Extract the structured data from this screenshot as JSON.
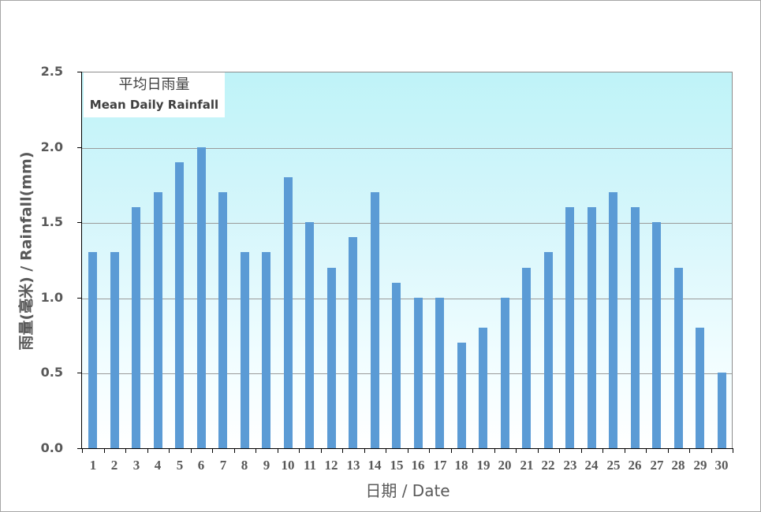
{
  "chart_data": {
    "type": "bar",
    "title": "平均日雨量 Mean Daily Rainfall",
    "legend": {
      "zh": "平均日雨量",
      "en": "Mean Daily Rainfall"
    },
    "xlabel": "日期 / Date",
    "ylabel": "雨量(毫米) / Rainfall(mm)",
    "ylim": [
      0,
      2.5
    ],
    "yticks": [
      "0.0",
      "0.5",
      "1.0",
      "1.5",
      "2.0",
      "2.5"
    ],
    "grid": true,
    "categories": [
      "1",
      "2",
      "3",
      "4",
      "5",
      "6",
      "7",
      "8",
      "9",
      "10",
      "11",
      "12",
      "13",
      "14",
      "15",
      "16",
      "17",
      "18",
      "19",
      "20",
      "21",
      "22",
      "23",
      "24",
      "25",
      "26",
      "27",
      "28",
      "29",
      "30"
    ],
    "values": [
      1.3,
      1.3,
      1.6,
      1.7,
      1.9,
      2.0,
      1.7,
      1.3,
      1.3,
      1.8,
      1.5,
      1.2,
      1.4,
      1.7,
      1.1,
      1.0,
      1.0,
      0.7,
      0.8,
      1.0,
      1.2,
      1.3,
      1.6,
      1.6,
      1.7,
      1.6,
      1.5,
      1.2,
      0.8,
      0.5
    ],
    "bar_color": "#5b9bd5",
    "background_gradient": [
      "#bff3f8",
      "#ffffff"
    ]
  },
  "legend_box": {
    "zh": "平均日雨量",
    "en": "Mean Daily Rainfall"
  },
  "axes": {
    "y_title": "雨量(毫米) / Rainfall(mm)",
    "x_title": "日期 / Date"
  }
}
